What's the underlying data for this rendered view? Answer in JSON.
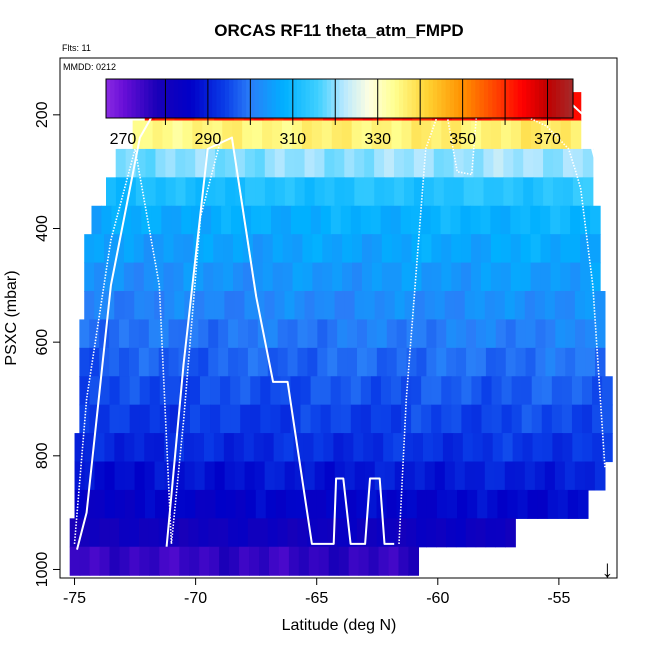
{
  "chart_data": {
    "type": "heatmap",
    "title": "ORCAS RF11 theta_atm_FMPD",
    "notes": [
      "Flts: 11",
      "MMDD: 0212"
    ],
    "xlabel": "Latitude (deg N)",
    "ylabel": "PSXC (mbar)",
    "xlim": [
      -75.6,
      -52.6
    ],
    "ylim": [
      1015,
      100
    ],
    "y_reversed": true,
    "xticks": [
      -75,
      -70,
      -65,
      -60,
      -55
    ],
    "yticks": [
      200,
      400,
      600,
      800,
      1000
    ],
    "colorbar": {
      "range": [
        266,
        376
      ],
      "ticks": [
        270,
        290,
        310,
        330,
        350,
        370
      ],
      "boundaries": [
        280,
        290,
        300,
        310,
        320,
        330,
        340,
        350,
        360,
        370
      ],
      "stops": [
        {
          "v": 266,
          "c": "#8a2be2"
        },
        {
          "v": 270,
          "c": "#6a0fd8"
        },
        {
          "v": 278,
          "c": "#1a00b8"
        },
        {
          "v": 286,
          "c": "#0000c8"
        },
        {
          "v": 294,
          "c": "#0a3de8"
        },
        {
          "v": 300,
          "c": "#2a7df8"
        },
        {
          "v": 308,
          "c": "#00b0ff"
        },
        {
          "v": 316,
          "c": "#40d0ff"
        },
        {
          "v": 322,
          "c": "#b8e8ff"
        },
        {
          "v": 328,
          "c": "#ffffe0"
        },
        {
          "v": 334,
          "c": "#ffff90"
        },
        {
          "v": 342,
          "c": "#ffd030"
        },
        {
          "v": 350,
          "c": "#ff9000"
        },
        {
          "v": 358,
          "c": "#ff4000"
        },
        {
          "v": 364,
          "c": "#ff0000"
        },
        {
          "v": 370,
          "c": "#c00000"
        },
        {
          "v": 376,
          "c": "#a52a2a"
        }
      ]
    },
    "rows": [
      {
        "p": 185,
        "x0": -72.1,
        "x1": -54.1,
        "theta": 362
      },
      {
        "p": 235,
        "x0": -72.6,
        "x1": -54.1,
        "theta": 336
      },
      {
        "p": 285,
        "x0": -73.3,
        "x1": -53.6,
        "theta": 320
      },
      {
        "p": 335,
        "x0": -73.7,
        "x1": -53.6,
        "theta": 312
      },
      {
        "p": 385,
        "x0": -74.3,
        "x1": -53.3,
        "theta": 308
      },
      {
        "p": 435,
        "x0": -74.6,
        "x1": -53.3,
        "theta": 306
      },
      {
        "p": 485,
        "x0": -74.6,
        "x1": -53.3,
        "theta": 304
      },
      {
        "p": 535,
        "x0": -74.6,
        "x1": -53.1,
        "theta": 302
      },
      {
        "p": 585,
        "x0": -74.8,
        "x1": -53.1,
        "theta": 300
      },
      {
        "p": 635,
        "x0": -74.8,
        "x1": -53.1,
        "theta": 298
      },
      {
        "p": 685,
        "x0": -74.8,
        "x1": -52.8,
        "theta": 296
      },
      {
        "p": 735,
        "x0": -74.8,
        "x1": -52.8,
        "theta": 294
      },
      {
        "p": 785,
        "x0": -75.0,
        "x1": -52.8,
        "theta": 292
      },
      {
        "p": 835,
        "x0": -75.0,
        "x1": -53.1,
        "theta": 289
      },
      {
        "p": 885,
        "x0": -75.0,
        "x1": -53.8,
        "theta": 286
      },
      {
        "p": 935,
        "x0": -75.2,
        "x1": -56.8,
        "theta": 282
      },
      {
        "p": 985,
        "x0": -75.2,
        "x1": -60.8,
        "theta": 276
      }
    ],
    "series": [
      {
        "style": "solid",
        "x": [
          -74.9,
          -74.5,
          -73.5,
          -72.3,
          -71.5,
          -70.5,
          -69.5,
          -68.5,
          -67.5,
          -66.5,
          -65.5,
          -65.0,
          -64.3,
          -63.8,
          -63.5,
          -63.3,
          -62.8,
          -62.5,
          -62.0,
          -61.4,
          -61.0,
          -60.5,
          -60.0,
          -59.5,
          -59.0,
          -58.5,
          -58.2,
          -57.8,
          -57.5,
          -57.0,
          -56.0,
          -55.5,
          -55.0,
          -54.5,
          -54.0,
          -53.5,
          -53.1
        ],
        "y": [
          965,
          900,
          500,
          240,
          180,
          178,
          178,
          178,
          178,
          178,
          178,
          178,
          178,
          178,
          178,
          180,
          180,
          178,
          178,
          178,
          178,
          178,
          178,
          180,
          180,
          182,
          180,
          180,
          178,
          178,
          178,
          178,
          180,
          180,
          200,
          280,
          380
        ]
      },
      {
        "style": "solid",
        "x": [
          -71.2,
          -70.5,
          -69.5,
          -68.5,
          -67.5,
          -66.8,
          -66.2,
          -65.2,
          -64.3,
          -64.2,
          -63.9,
          -63.6,
          -63.5,
          -63.0,
          -62.8,
          -62.4,
          -62.2,
          -61.8
        ],
        "y": [
          960,
          640,
          260,
          240,
          520,
          670,
          670,
          955,
          955,
          840,
          840,
          955,
          955,
          955,
          840,
          840,
          955,
          955
        ]
      },
      {
        "style": "dotted",
        "x": [
          -75.0,
          -74.5,
          -73.5,
          -72.5,
          -71.5,
          -71.0,
          -70.5,
          -69.8,
          -69.0,
          -68.5,
          -67.5
        ],
        "y": [
          955,
          700,
          420,
          260,
          500,
          955,
          740,
          380,
          250,
          240,
          520
        ]
      },
      {
        "style": "dotted",
        "x": [
          -61.6,
          -61.3,
          -60.5,
          -60.0,
          -59.6,
          -59.2,
          -58.6,
          -58.4,
          -57.5,
          -56.5,
          -55.5,
          -54.6,
          -54.3,
          -54.1,
          -53.6,
          -53.1
        ],
        "y": [
          955,
          700,
          260,
          200,
          205,
          300,
          305,
          200,
          200,
          200,
          220,
          260,
          300,
          330,
          500,
          820
        ]
      }
    ],
    "marker_x": -53.0,
    "marker_glyph": "↓"
  }
}
